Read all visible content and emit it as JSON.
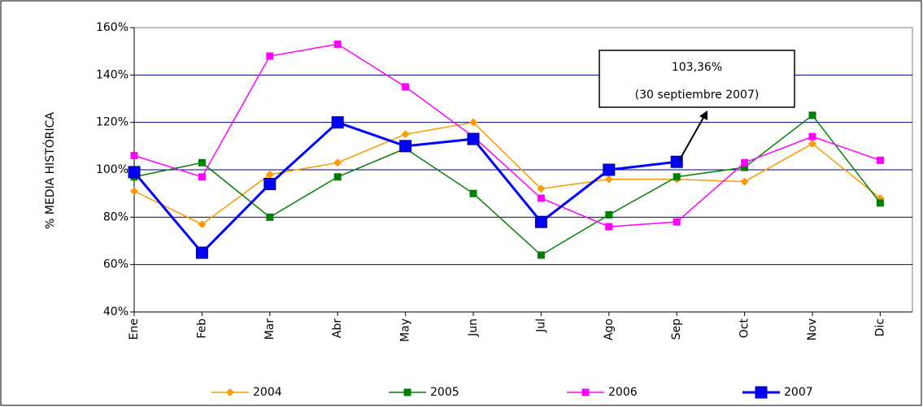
{
  "chart_data": {
    "type": "line",
    "y_label": "% MEDIA HISTÓRICA",
    "categories": [
      "Ene",
      "Feb",
      "Mar",
      "Abr",
      "May",
      "Jun",
      "Jul",
      "Ago",
      "Sep",
      "Oct",
      "Nov",
      "Dic"
    ],
    "ylim": [
      40,
      160
    ],
    "yticks": [
      {
        "value": 40,
        "label": "40%"
      },
      {
        "value": 60,
        "label": "60%"
      },
      {
        "value": 80,
        "label": "80%"
      },
      {
        "value": 100,
        "label": "100%"
      },
      {
        "value": 120,
        "label": "120%"
      },
      {
        "value": 140,
        "label": "140%"
      },
      {
        "value": 160,
        "label": "160%"
      }
    ],
    "grid": true,
    "legend": "bottom",
    "series": [
      {
        "name": "2004",
        "color": "#ff9900",
        "marker": "diamond",
        "values": [
          91,
          77,
          98,
          103,
          115,
          120,
          92,
          96,
          96,
          95,
          111,
          88
        ]
      },
      {
        "name": "2005",
        "color": "#008000",
        "marker": "square",
        "values": [
          97,
          103,
          80,
          97,
          109,
          90,
          64,
          81,
          97,
          101,
          123,
          86
        ]
      },
      {
        "name": "2006",
        "color": "#ff00ff",
        "marker": "square",
        "values": [
          106,
          97,
          148,
          153,
          135,
          114,
          88,
          76,
          78,
          103,
          114,
          104
        ]
      },
      {
        "name": "2007",
        "color": "#0000ff",
        "marker": "big-square",
        "values": [
          99,
          65,
          94,
          120,
          110,
          113,
          78,
          100,
          103.36,
          null,
          null,
          null
        ]
      }
    ],
    "annotation": {
      "lines": [
        "103,36%",
        "(30 septiembre 2007)"
      ]
    }
  }
}
